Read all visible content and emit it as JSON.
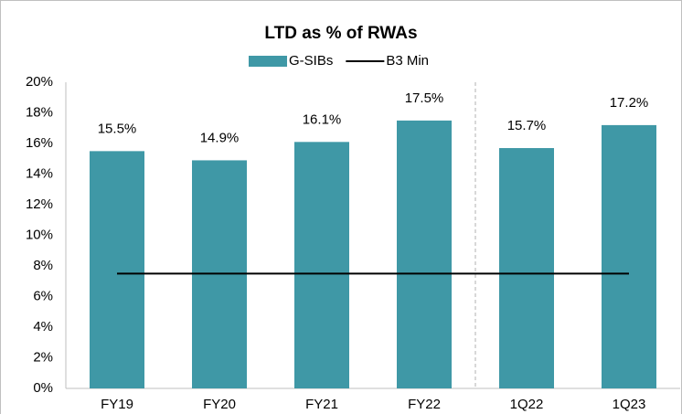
{
  "chart_data": {
    "type": "bar",
    "title": "LTD as % of RWAs",
    "categories": [
      "FY19",
      "FY20",
      "FY21",
      "FY22",
      "1Q22",
      "1Q23"
    ],
    "series": [
      {
        "name": "G-SIBs",
        "type": "bar",
        "color": "#3f98a6",
        "values": [
          15.5,
          14.9,
          16.1,
          17.5,
          15.7,
          17.2
        ],
        "value_labels": [
          "15.5%",
          "14.9%",
          "16.1%",
          "17.5%",
          "15.7%",
          "17.2%"
        ]
      },
      {
        "name": "B3 Min",
        "type": "line",
        "color": "#000000",
        "values": [
          7.5,
          7.5,
          7.5,
          7.5,
          7.5,
          7.5
        ]
      }
    ],
    "ylim": [
      0,
      20
    ],
    "yticks": [
      {
        "value": 0,
        "label": "0%"
      },
      {
        "value": 2,
        "label": "2%"
      },
      {
        "value": 4,
        "label": "4%"
      },
      {
        "value": 6,
        "label": "6%"
      },
      {
        "value": 8,
        "label": "8%"
      },
      {
        "value": 10,
        "label": "10%"
      },
      {
        "value": 12,
        "label": "12%"
      },
      {
        "value": 14,
        "label": "14%"
      },
      {
        "value": 16,
        "label": "16%"
      },
      {
        "value": 18,
        "label": "18%"
      },
      {
        "value": 20,
        "label": "20%"
      }
    ],
    "legend": "top"
  }
}
